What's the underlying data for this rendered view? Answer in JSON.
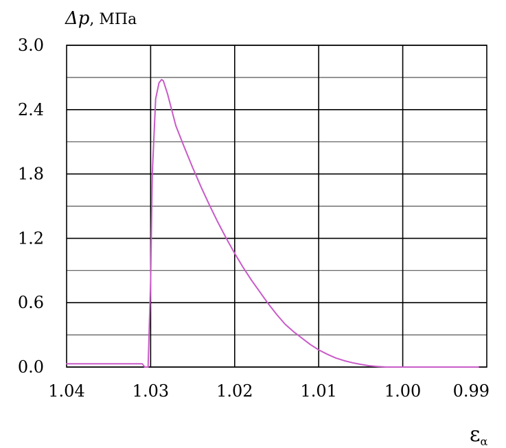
{
  "chart_data": {
    "type": "line",
    "title": "",
    "ylabel_symbol": "Δp",
    "ylabel_unit": ", МПа",
    "xlabel_symbol": "ε",
    "xlabel_sub": "α",
    "xlim": [
      1.04,
      0.99
    ],
    "ylim": [
      0.0,
      3.0
    ],
    "x_reversed": true,
    "grid": true,
    "x_ticks": [
      "1.04",
      "1.03",
      "1.02",
      "1.01",
      "1.00",
      "0.99"
    ],
    "x_tick_values": [
      1.04,
      1.03,
      1.02,
      1.01,
      1.0,
      0.99
    ],
    "x_minor_gridlines": [
      1.03,
      1.02,
      1.01,
      1.0
    ],
    "y_ticks": [
      "3.0",
      "2.4",
      "1.8",
      "1.2",
      "0.6",
      "0.0"
    ],
    "y_tick_values": [
      3.0,
      2.4,
      1.8,
      1.2,
      0.6,
      0.0
    ],
    "y_minor_gridlines": [
      0.3,
      0.9,
      1.5,
      2.1,
      2.7
    ],
    "series": [
      {
        "color": "#c85ac8",
        "x": [
          1.04,
          1.039,
          1.038,
          1.036,
          1.034,
          1.032,
          1.031,
          1.0307,
          1.0305,
          1.0303,
          1.03,
          1.0298,
          1.0294,
          1.029,
          1.0287,
          1.0285,
          1.028,
          1.0275,
          1.027,
          1.026,
          1.025,
          1.024,
          1.023,
          1.022,
          1.021,
          1.02,
          1.019,
          1.018,
          1.017,
          1.016,
          1.015,
          1.014,
          1.013,
          1.012,
          1.011,
          1.01,
          1.009,
          1.008,
          1.007,
          1.006,
          1.005,
          1.004,
          1.003,
          1.002,
          1.001,
          1.0,
          0.999,
          0.998,
          0.996,
          0.994,
          0.992,
          0.991
        ],
        "values": [
          0.03,
          0.03,
          0.03,
          0.03,
          0.03,
          0.03,
          0.03,
          0.0,
          0.0,
          0.0,
          0.8,
          1.8,
          2.5,
          2.65,
          2.68,
          2.67,
          2.55,
          2.4,
          2.25,
          2.05,
          1.86,
          1.68,
          1.51,
          1.35,
          1.2,
          1.06,
          0.93,
          0.81,
          0.7,
          0.59,
          0.49,
          0.4,
          0.33,
          0.27,
          0.21,
          0.16,
          0.12,
          0.085,
          0.06,
          0.04,
          0.025,
          0.012,
          0.005,
          0.0,
          0.0,
          0.0,
          0.0,
          0.0,
          0.0,
          0.0,
          0.0,
          0.0
        ]
      }
    ]
  }
}
